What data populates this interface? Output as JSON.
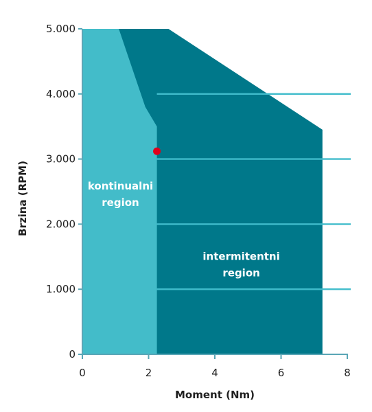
{
  "chart_data": {
    "type": "area",
    "xlabel": "Moment (Nm)",
    "ylabel": "Brzina (RPM)",
    "xlim": [
      0,
      8
    ],
    "ylim": [
      0,
      5000
    ],
    "x_ticks": [
      0,
      2,
      4,
      6,
      8
    ],
    "x_tick_labels": [
      "0",
      "2",
      "4",
      "6",
      "8"
    ],
    "y_ticks": [
      0,
      1000,
      2000,
      3000,
      4000,
      5000
    ],
    "y_tick_labels": [
      "0",
      "1.000",
      "2.000",
      "3.000",
      "4.000",
      "5.000"
    ],
    "grid": "horizontal",
    "regions": [
      {
        "name": "intermitentni region",
        "label_lines": [
          "intermitentni",
          "region"
        ],
        "label_at": [
          4.8,
          1450
        ],
        "color": "#00788a",
        "points": [
          [
            0,
            0
          ],
          [
            0,
            5000
          ],
          [
            2.6,
            5000
          ],
          [
            7.25,
            3450
          ],
          [
            7.25,
            0
          ]
        ]
      },
      {
        "name": "kontinualni region",
        "label_lines": [
          "kontinualni",
          "region"
        ],
        "label_at": [
          1.15,
          2530
        ],
        "color": "#43bcc9",
        "points": [
          [
            0,
            0
          ],
          [
            0,
            5000
          ],
          [
            1.1,
            5000
          ],
          [
            1.9,
            3800
          ],
          [
            2.25,
            3500
          ],
          [
            2.25,
            0
          ]
        ]
      }
    ],
    "marker": {
      "x": 2.25,
      "y": 3120,
      "color": "#e0001b"
    },
    "gridline_color": "#40bccb"
  }
}
